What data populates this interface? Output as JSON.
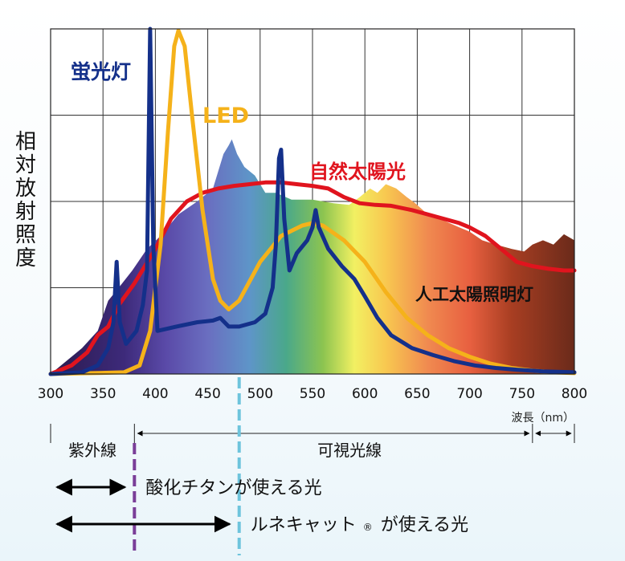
{
  "chart_data": {
    "type": "line",
    "ylabel": "相対放射照度",
    "xlabel": "波長（nm）",
    "x_ticks": [
      "300",
      "350",
      "400",
      "450",
      "500",
      "550",
      "600",
      "650",
      "700",
      "750",
      "800"
    ],
    "xlim": [
      300,
      800
    ],
    "ylim": [
      0,
      4
    ],
    "grid": true,
    "series": [
      {
        "name": "人工太陽照明灯",
        "kind": "filled-area",
        "color": "#6b2a1c",
        "points": [
          [
            300,
            0
          ],
          [
            320,
            0.2
          ],
          [
            330,
            0.3
          ],
          [
            345,
            0.5
          ],
          [
            355,
            0.85
          ],
          [
            365,
            1.0
          ],
          [
            378,
            1.2
          ],
          [
            392,
            1.45
          ],
          [
            405,
            1.6
          ],
          [
            422,
            1.85
          ],
          [
            440,
            2.0
          ],
          [
            455,
            2.15
          ],
          [
            465,
            2.55
          ],
          [
            470,
            2.65
          ],
          [
            473,
            2.72
          ],
          [
            478,
            2.55
          ],
          [
            485,
            2.4
          ],
          [
            495,
            2.3
          ],
          [
            505,
            2.1
          ],
          [
            515,
            2.1
          ],
          [
            530,
            2.02
          ],
          [
            550,
            2.02
          ],
          [
            570,
            1.98
          ],
          [
            585,
            1.96
          ],
          [
            595,
            2.05
          ],
          [
            605,
            2.15
          ],
          [
            612,
            2.1
          ],
          [
            620,
            2.2
          ],
          [
            630,
            2.15
          ],
          [
            640,
            2.05
          ],
          [
            648,
            1.98
          ],
          [
            660,
            1.85
          ],
          [
            675,
            1.78
          ],
          [
            690,
            1.7
          ],
          [
            700,
            1.65
          ],
          [
            712,
            1.55
          ],
          [
            725,
            1.5
          ],
          [
            740,
            1.45
          ],
          [
            752,
            1.42
          ],
          [
            760,
            1.5
          ],
          [
            770,
            1.55
          ],
          [
            780,
            1.5
          ],
          [
            790,
            1.62
          ],
          [
            800,
            1.55
          ]
        ]
      },
      {
        "name": "自然太陽光",
        "kind": "line",
        "color": "#e0141e",
        "points": [
          [
            300,
            0
          ],
          [
            320,
            0.1
          ],
          [
            335,
            0.25
          ],
          [
            345,
            0.45
          ],
          [
            355,
            0.55
          ],
          [
            365,
            0.8
          ],
          [
            380,
            1.05
          ],
          [
            390,
            1.25
          ],
          [
            400,
            1.45
          ],
          [
            415,
            1.8
          ],
          [
            430,
            2.0
          ],
          [
            445,
            2.1
          ],
          [
            460,
            2.15
          ],
          [
            475,
            2.18
          ],
          [
            490,
            2.2
          ],
          [
            505,
            2.22
          ],
          [
            520,
            2.22
          ],
          [
            535,
            2.2
          ],
          [
            550,
            2.18
          ],
          [
            565,
            2.15
          ],
          [
            580,
            2.05
          ],
          [
            595,
            1.98
          ],
          [
            610,
            1.96
          ],
          [
            625,
            1.95
          ],
          [
            645,
            1.9
          ],
          [
            660,
            1.85
          ],
          [
            675,
            1.8
          ],
          [
            690,
            1.75
          ],
          [
            700,
            1.7
          ],
          [
            715,
            1.6
          ],
          [
            730,
            1.45
          ],
          [
            745,
            1.3
          ],
          [
            760,
            1.25
          ],
          [
            775,
            1.22
          ],
          [
            790,
            1.2
          ],
          [
            800,
            1.2
          ]
        ]
      },
      {
        "name": "LED",
        "kind": "line",
        "color": "#f5b21a",
        "points": [
          [
            300,
            0
          ],
          [
            340,
            0.01
          ],
          [
            370,
            0.02
          ],
          [
            385,
            0.1
          ],
          [
            395,
            0.5
          ],
          [
            405,
            1.5
          ],
          [
            412,
            2.8
          ],
          [
            418,
            3.8
          ],
          [
            422,
            3.98
          ],
          [
            428,
            3.8
          ],
          [
            435,
            3.0
          ],
          [
            445,
            1.9
          ],
          [
            455,
            1.1
          ],
          [
            462,
            0.85
          ],
          [
            470,
            0.75
          ],
          [
            480,
            0.85
          ],
          [
            500,
            1.3
          ],
          [
            520,
            1.6
          ],
          [
            540,
            1.72
          ],
          [
            550,
            1.75
          ],
          [
            560,
            1.72
          ],
          [
            580,
            1.55
          ],
          [
            600,
            1.3
          ],
          [
            620,
            0.95
          ],
          [
            640,
            0.65
          ],
          [
            660,
            0.45
          ],
          [
            680,
            0.3
          ],
          [
            700,
            0.2
          ],
          [
            720,
            0.12
          ],
          [
            740,
            0.07
          ],
          [
            760,
            0.04
          ],
          [
            780,
            0.02
          ],
          [
            800,
            0.01
          ]
        ]
      },
      {
        "name": "蛍光灯",
        "kind": "line",
        "color": "#14308a",
        "points": [
          [
            300,
            0
          ],
          [
            330,
            0.02
          ],
          [
            345,
            0.1
          ],
          [
            355,
            0.3
          ],
          [
            360,
            0.6
          ],
          [
            363,
            1.3
          ],
          [
            366,
            0.6
          ],
          [
            372,
            0.35
          ],
          [
            382,
            0.5
          ],
          [
            388,
            0.8
          ],
          [
            392,
            1.2
          ],
          [
            395,
            4.0
          ],
          [
            398,
            1.5
          ],
          [
            402,
            0.5
          ],
          [
            420,
            0.55
          ],
          [
            440,
            0.6
          ],
          [
            455,
            0.62
          ],
          [
            462,
            0.65
          ],
          [
            470,
            0.55
          ],
          [
            480,
            0.55
          ],
          [
            495,
            0.6
          ],
          [
            505,
            0.7
          ],
          [
            512,
            1.0
          ],
          [
            515,
            1.5
          ],
          [
            518,
            2.5
          ],
          [
            520,
            2.6
          ],
          [
            523,
            1.8
          ],
          [
            528,
            1.2
          ],
          [
            535,
            1.4
          ],
          [
            545,
            1.55
          ],
          [
            550,
            1.7
          ],
          [
            553,
            1.9
          ],
          [
            556,
            1.7
          ],
          [
            565,
            1.45
          ],
          [
            578,
            1.25
          ],
          [
            590,
            1.1
          ],
          [
            600,
            0.9
          ],
          [
            612,
            0.65
          ],
          [
            625,
            0.45
          ],
          [
            645,
            0.3
          ],
          [
            665,
            0.22
          ],
          [
            685,
            0.15
          ],
          [
            705,
            0.1
          ],
          [
            725,
            0.07
          ],
          [
            745,
            0.05
          ],
          [
            770,
            0.03
          ],
          [
            800,
            0.02
          ]
        ]
      }
    ],
    "annotations": {
      "ranges": [
        {
          "label": "紫外線",
          "from": 300,
          "to": 380
        },
        {
          "label": "可視光線",
          "from": 380,
          "to": 760
        }
      ],
      "markers": [
        {
          "at": 380,
          "color": "#7a3e98",
          "style": "dashed"
        },
        {
          "at": 480,
          "color": "#6ec4dc",
          "style": "dashed"
        }
      ],
      "effective_ranges": [
        {
          "label": "酸化チタンが使える光",
          "from": 300,
          "to": 380
        },
        {
          "label": "ルネキャット",
          "label_mark": "®",
          "label_suffix": "が使える光",
          "from": 300,
          "to": 480
        }
      ]
    }
  }
}
